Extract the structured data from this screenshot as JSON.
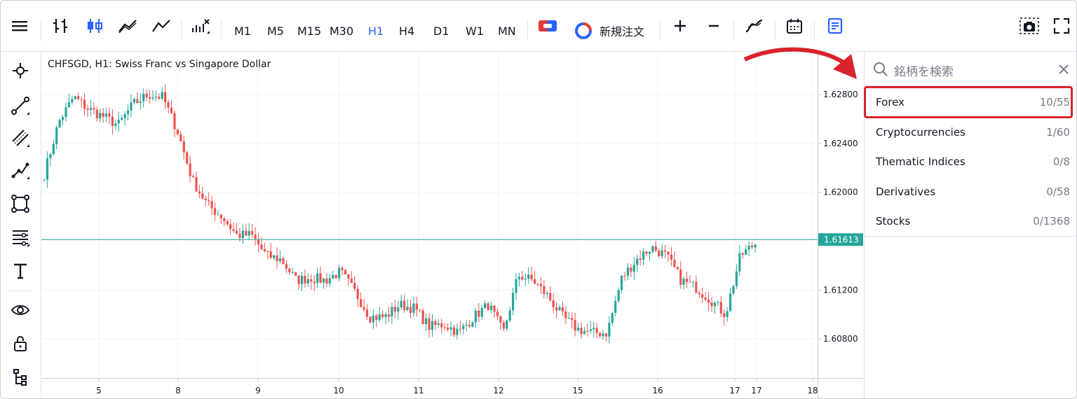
{
  "toolbar": {
    "timeframes": [
      {
        "label": "M1",
        "active": false
      },
      {
        "label": "M5",
        "active": false
      },
      {
        "label": "M15",
        "active": false
      },
      {
        "label": "M30",
        "active": false
      },
      {
        "label": "H1",
        "active": true
      },
      {
        "label": "H4",
        "active": false
      },
      {
        "label": "D1",
        "active": false
      },
      {
        "label": "W1",
        "active": false
      },
      {
        "label": "MN",
        "active": false
      }
    ],
    "new_order_label": "新規注文",
    "accent_color": "#2962ff"
  },
  "chart": {
    "title": "CHFSGD, H1: Swiss Franc vs Singapore Dollar",
    "current_price_label": "1.61613",
    "current_price": 1.61613,
    "line_color": "#4db6ac",
    "up_color": "#26a69a",
    "down_color": "#ef5350"
  },
  "chart_data": {
    "type": "candlestick",
    "y_ticks": [
      "1.62800",
      "1.62400",
      "1.62000",
      "1.61200",
      "1.60800"
    ],
    "y_tick_values": [
      1.628,
      1.624,
      1.62,
      1.612,
      1.608
    ],
    "ylim": [
      1.6048,
      1.6315
    ],
    "x_ticks": [
      "5",
      "8",
      "9",
      "10",
      "11",
      "12",
      "15",
      "16",
      "17",
      "17",
      "18"
    ],
    "series": [
      {
        "values": [
          1.6215,
          1.6258,
          1.6278,
          1.6268,
          1.6262,
          1.6255,
          1.6272,
          1.628,
          1.6278,
          1.625,
          1.621,
          1.619,
          1.618,
          1.6165,
          1.6165,
          1.6148,
          1.6145,
          1.6128,
          1.613,
          1.6128,
          1.6135,
          1.6118,
          1.6098,
          1.6098,
          1.6108,
          1.6105,
          1.609,
          1.6092,
          1.6085,
          1.6098,
          1.6108,
          1.6085,
          1.6132,
          1.6128,
          1.6115,
          1.6098,
          1.6088,
          1.6085,
          1.6085,
          1.613,
          1.6145,
          1.6155,
          1.6148,
          1.6128,
          1.6122,
          1.6112,
          1.61,
          1.6148,
          1.6158
        ]
      }
    ]
  },
  "panel": {
    "search_placeholder": "銘柄を検索",
    "categories": [
      {
        "name": "Forex",
        "count": "10/55"
      },
      {
        "name": "Cryptocurrencies",
        "count": "1/60"
      },
      {
        "name": "Thematic Indices",
        "count": "0/8"
      },
      {
        "name": "Derivatives",
        "count": "0/58"
      },
      {
        "name": "Stocks",
        "count": "0/1368"
      }
    ],
    "highlight_color": "#d9232d"
  }
}
